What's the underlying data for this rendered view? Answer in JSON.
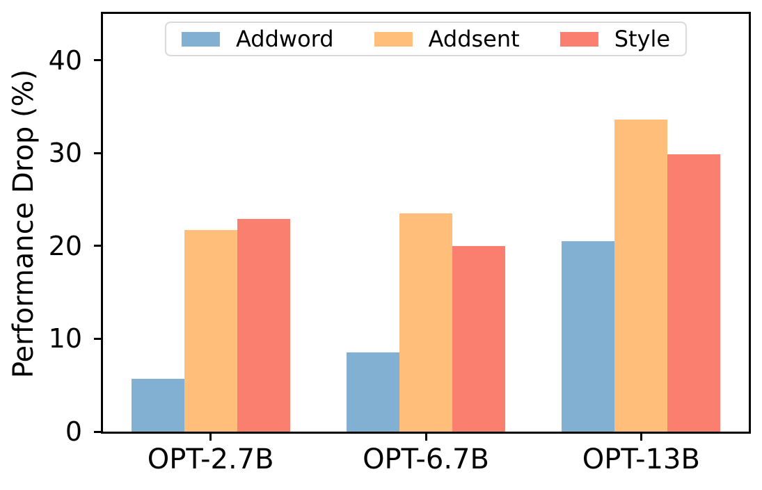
{
  "figure": {
    "background": "#ffffff",
    "text_color": "#000000"
  },
  "chart_data": {
    "type": "bar",
    "title": "",
    "xlabel": "",
    "ylabel": "Performance Drop (%)",
    "categories": [
      "OPT-2.7B",
      "OPT-6.7B",
      "OPT-13B"
    ],
    "series": [
      {
        "name": "Addword",
        "color": "#82B0D2",
        "values": [
          5.7,
          8.5,
          20.5
        ]
      },
      {
        "name": "Addsent",
        "color": "#FFBE7A",
        "values": [
          21.7,
          23.5,
          33.6
        ]
      },
      {
        "name": "Style",
        "color": "#FA7F6F",
        "values": [
          22.9,
          20.0,
          29.9
        ]
      }
    ],
    "ylim": [
      0,
      45
    ],
    "yticks": [
      0,
      10,
      20,
      30,
      40
    ],
    "legend_position": "upper center",
    "legend_columns": 3,
    "grid": false
  }
}
